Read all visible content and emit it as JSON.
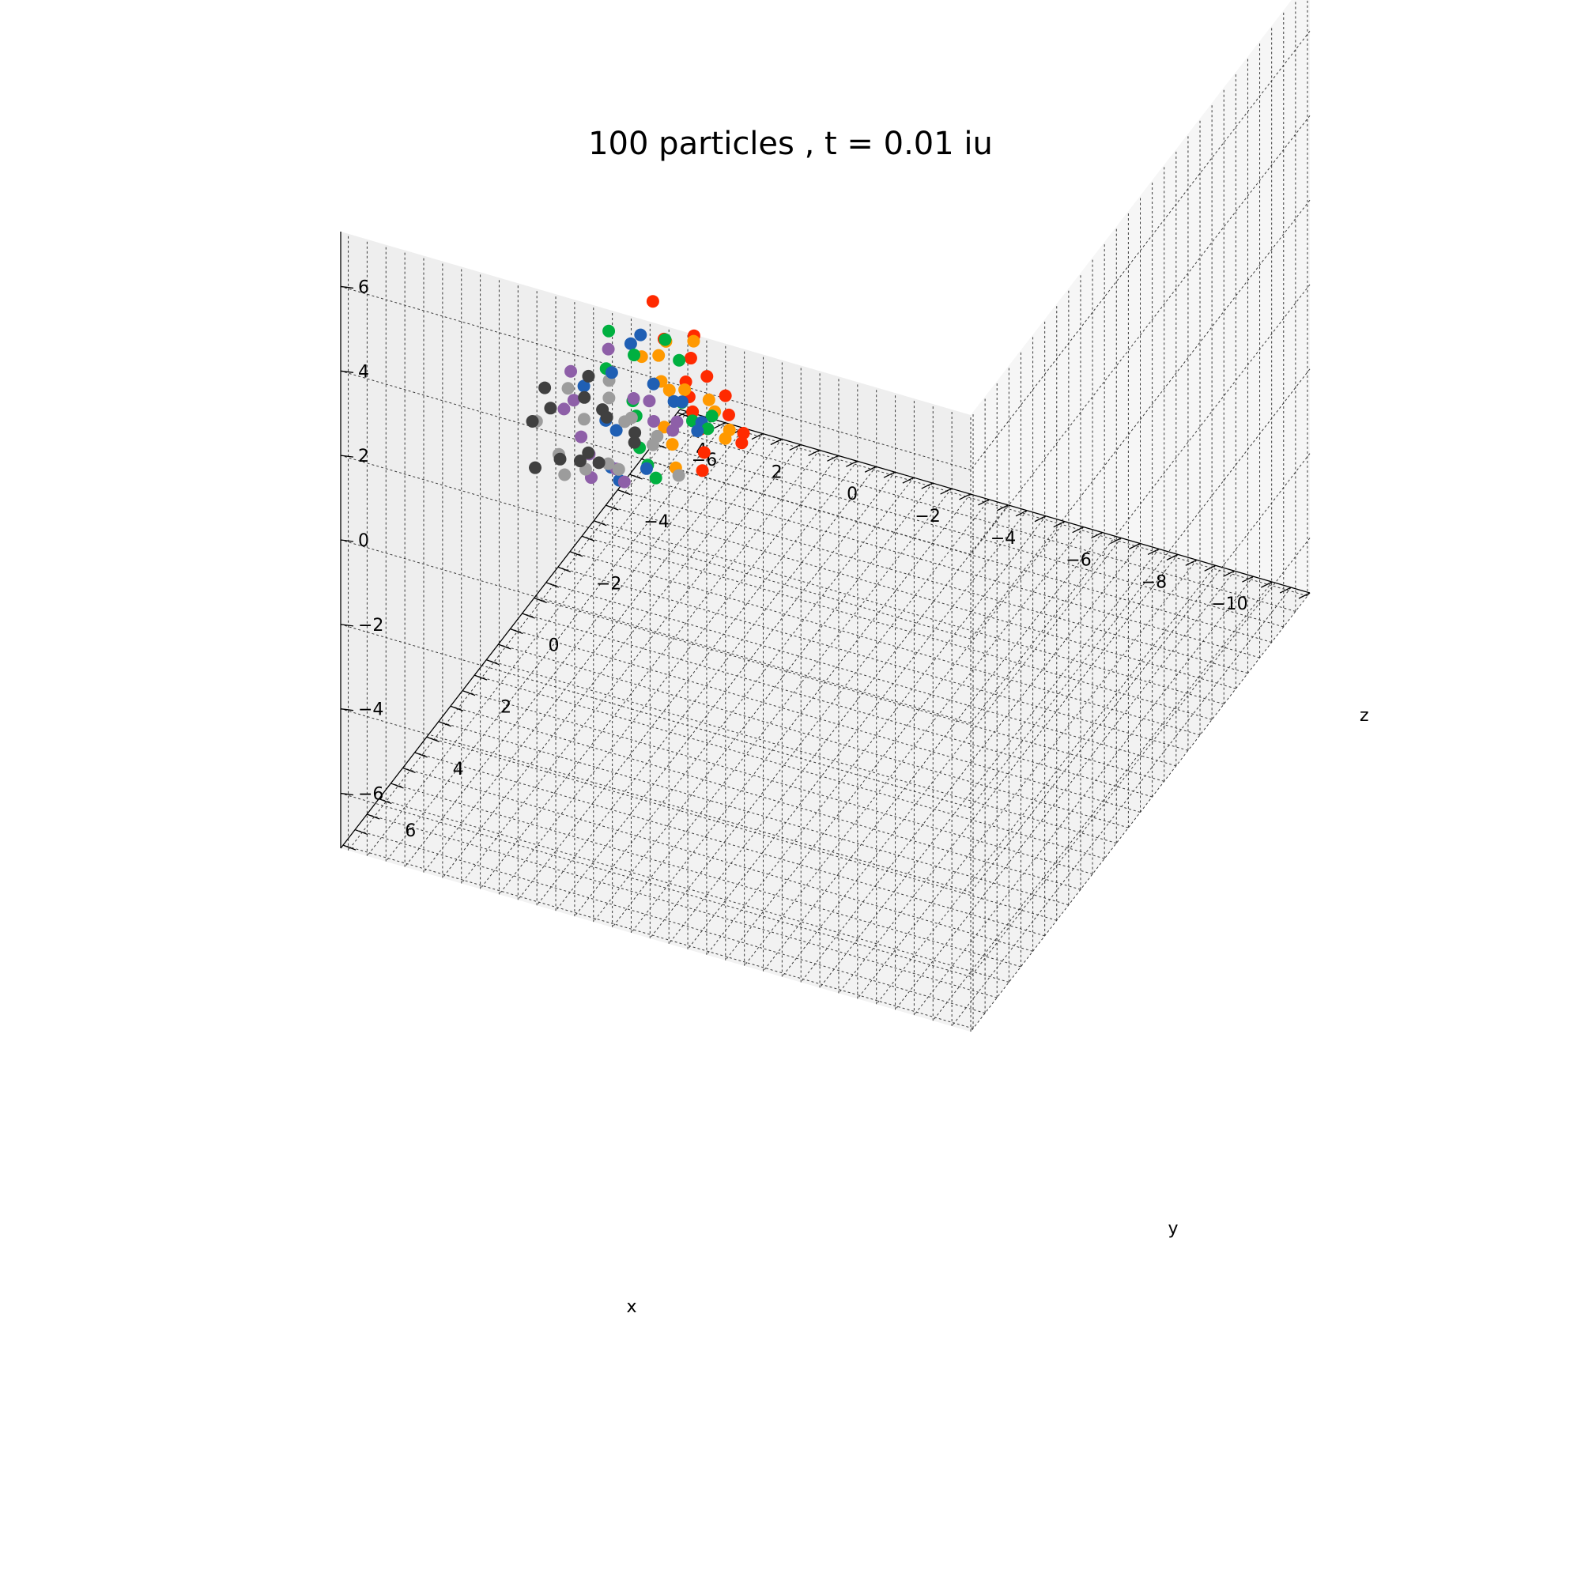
{
  "chart_data": {
    "type": "scatter",
    "title": "100 particles , t = 0.01 iu",
    "xlabel": "x",
    "ylabel": "y",
    "zlabel": "z",
    "xlim": [
      -11.5,
      5.2
    ],
    "ylim": [
      -7.1,
      7.1
    ],
    "zlim": [
      -7.3,
      7.3
    ],
    "xticks": [
      -10,
      -8,
      -6,
      -4,
      -2,
      0,
      2,
      4
    ],
    "yticks": [
      -6,
      -4,
      -2,
      0,
      2,
      4,
      6
    ],
    "zticks": [
      -6,
      -4,
      -2,
      0,
      2,
      4,
      6
    ],
    "xtick_labels": [
      "−10",
      "−8",
      "−6",
      "−4",
      "−2",
      "0",
      "2",
      "4"
    ],
    "ytick_labels": [
      "−6",
      "−4",
      "−2",
      "0",
      "2",
      "4",
      "6"
    ],
    "ztick_labels": [
      "−6",
      "−4",
      "−2",
      "0",
      "2",
      "4",
      "6"
    ],
    "grid": true,
    "legend": "none",
    "colors": {
      "pane_left": "#f6f6f6",
      "pane_back": "#eeeeee",
      "pane_floor": "#f2f2f2",
      "particle_palette": [
        "#ff2a00",
        "#ff9900",
        "#00b040",
        "#1f5fb4",
        "#8e5fa8",
        "#9c9c9c",
        "#404040"
      ]
    },
    "points": [
      {
        "x": 1.8,
        "y": -0.6,
        "z": 0.9,
        "color": "#ff2a00"
      },
      {
        "x": 1.2,
        "y": -0.2,
        "z": 0.4,
        "color": "#ff9900"
      },
      {
        "x": 2.4,
        "y": 0.3,
        "z": 0.7,
        "color": "#00b040"
      },
      {
        "x": 1.5,
        "y": 0.8,
        "z": 1.0,
        "color": "#1f5fb4"
      },
      {
        "x": 2.9,
        "y": 1.1,
        "z": 0.2,
        "color": "#8e5fa8"
      },
      {
        "x": 3.1,
        "y": 0.9,
        "z": -0.4,
        "color": "#9c9c9c"
      },
      {
        "x": 3.4,
        "y": 1.4,
        "z": -0.1,
        "color": "#404040"
      },
      {
        "x": 0.9,
        "y": -0.9,
        "z": 0.1,
        "color": "#ff2a00"
      },
      {
        "x": 1.1,
        "y": -1.2,
        "z": -0.3,
        "color": "#ff9900"
      },
      {
        "x": 1.6,
        "y": -0.8,
        "z": -0.1,
        "color": "#00b040"
      },
      {
        "x": 2.0,
        "y": -0.4,
        "z": 0.2,
        "color": "#1f5fb4"
      },
      {
        "x": 2.6,
        "y": 0.0,
        "z": 0.0,
        "color": "#8e5fa8"
      },
      {
        "x": 2.2,
        "y": 0.6,
        "z": -0.2,
        "color": "#9c9c9c"
      },
      {
        "x": 3.0,
        "y": 0.2,
        "z": -0.6,
        "color": "#404040"
      },
      {
        "x": 1.3,
        "y": -1.4,
        "z": -0.9,
        "color": "#ff2a00"
      },
      {
        "x": 1.9,
        "y": -1.0,
        "z": -0.7,
        "color": "#ff9900"
      },
      {
        "x": 2.3,
        "y": -0.6,
        "z": -0.5,
        "color": "#00b040"
      },
      {
        "x": 2.7,
        "y": -0.3,
        "z": -0.8,
        "color": "#1f5fb4"
      },
      {
        "x": 3.2,
        "y": 0.5,
        "z": -1.0,
        "color": "#8e5fa8"
      },
      {
        "x": 2.8,
        "y": 0.7,
        "z": -1.2,
        "color": "#9c9c9c"
      },
      {
        "x": 3.5,
        "y": 1.0,
        "z": -0.9,
        "color": "#404040"
      },
      {
        "x": 1.0,
        "y": -1.6,
        "z": -1.4,
        "color": "#ff2a00"
      },
      {
        "x": 1.4,
        "y": -1.3,
        "z": -1.6,
        "color": "#ff9900"
      },
      {
        "x": 1.8,
        "y": -1.7,
        "z": -1.3,
        "color": "#00b040"
      },
      {
        "x": 2.1,
        "y": -1.1,
        "z": -1.5,
        "color": "#1f5fb4"
      },
      {
        "x": 2.5,
        "y": -0.9,
        "z": -1.8,
        "color": "#8e5fa8"
      },
      {
        "x": 2.9,
        "y": -0.5,
        "z": -1.6,
        "color": "#9c9c9c"
      },
      {
        "x": 3.3,
        "y": -0.1,
        "z": -1.4,
        "color": "#404040"
      },
      {
        "x": 0.7,
        "y": -1.9,
        "z": -2.0,
        "color": "#ff2a00"
      },
      {
        "x": 1.2,
        "y": -2.0,
        "z": -2.3,
        "color": "#ff9900"
      },
      {
        "x": 1.6,
        "y": -1.5,
        "z": -2.1,
        "color": "#00b040"
      },
      {
        "x": 2.0,
        "y": -1.8,
        "z": -2.4,
        "color": "#1f5fb4"
      },
      {
        "x": 2.4,
        "y": -1.4,
        "z": -2.2,
        "color": "#8e5fa8"
      },
      {
        "x": 2.8,
        "y": -1.0,
        "z": -2.5,
        "color": "#9c9c9c"
      },
      {
        "x": 3.2,
        "y": -0.7,
        "z": -2.1,
        "color": "#404040"
      },
      {
        "x": 0.8,
        "y": -2.2,
        "z": -2.7,
        "color": "#ff2a00"
      },
      {
        "x": 1.3,
        "y": -2.4,
        "z": -2.9,
        "color": "#ff9900"
      },
      {
        "x": 1.7,
        "y": -2.1,
        "z": -3.0,
        "color": "#00b040"
      },
      {
        "x": 2.1,
        "y": -2.3,
        "z": -2.8,
        "color": "#1f5fb4"
      },
      {
        "x": 2.6,
        "y": -1.9,
        "z": -3.1,
        "color": "#8e5fa8"
      },
      {
        "x": 3.0,
        "y": -1.6,
        "z": -2.9,
        "color": "#9c9c9c"
      },
      {
        "x": 3.4,
        "y": -1.2,
        "z": -2.7,
        "color": "#404040"
      },
      {
        "x": 0.6,
        "y": -2.5,
        "z": -3.3,
        "color": "#ff2a00"
      },
      {
        "x": 1.1,
        "y": -2.7,
        "z": -3.5,
        "color": "#ff9900"
      },
      {
        "x": 1.5,
        "y": -2.6,
        "z": -3.2,
        "color": "#00b040"
      },
      {
        "x": 1.9,
        "y": -2.8,
        "z": -3.6,
        "color": "#1f5fb4"
      },
      {
        "x": 2.3,
        "y": -2.4,
        "z": -3.4,
        "color": "#8e5fa8"
      },
      {
        "x": 2.7,
        "y": -2.2,
        "z": -3.7,
        "color": "#9c9c9c"
      },
      {
        "x": 3.1,
        "y": -1.9,
        "z": -3.5,
        "color": "#404040"
      },
      {
        "x": 0.9,
        "y": -2.9,
        "z": -3.9,
        "color": "#ff2a00"
      },
      {
        "x": 1.4,
        "y": -3.0,
        "z": -4.0,
        "color": "#ff9900"
      },
      {
        "x": 1.8,
        "y": -2.9,
        "z": -3.8,
        "color": "#00b040"
      },
      {
        "x": 2.2,
        "y": -3.1,
        "z": -4.1,
        "color": "#1f5fb4"
      },
      {
        "x": 2.6,
        "y": -2.7,
        "z": -3.9,
        "color": "#8e5fa8"
      },
      {
        "x": 3.0,
        "y": -2.5,
        "z": -4.2,
        "color": "#9c9c9c"
      },
      {
        "x": 3.3,
        "y": -2.2,
        "z": -4.0,
        "color": "#404040"
      },
      {
        "x": 1.0,
        "y": 0.2,
        "z": 0.8,
        "color": "#ff2a00"
      },
      {
        "x": 1.4,
        "y": 0.5,
        "z": 0.5,
        "color": "#ff9900"
      },
      {
        "x": 1.9,
        "y": 1.2,
        "z": 0.6,
        "color": "#00b040"
      },
      {
        "x": 2.3,
        "y": 1.5,
        "z": 0.3,
        "color": "#1f5fb4"
      },
      {
        "x": 2.7,
        "y": 1.7,
        "z": -0.2,
        "color": "#8e5fa8"
      },
      {
        "x": 3.3,
        "y": 1.9,
        "z": -0.5,
        "color": "#9c9c9c"
      },
      {
        "x": 3.6,
        "y": 1.6,
        "z": -0.8,
        "color": "#404040"
      },
      {
        "x": 0.8,
        "y": -0.4,
        "z": -0.6,
        "color": "#ff2a00"
      },
      {
        "x": 1.2,
        "y": 0.0,
        "z": -0.4,
        "color": "#ff9900"
      },
      {
        "x": 1.7,
        "y": 0.4,
        "z": -0.7,
        "color": "#00b040"
      },
      {
        "x": 2.1,
        "y": 0.9,
        "z": -0.9,
        "color": "#1f5fb4"
      },
      {
        "x": 2.5,
        "y": 1.3,
        "z": -1.1,
        "color": "#8e5fa8"
      },
      {
        "x": 2.9,
        "y": 1.6,
        "z": -1.4,
        "color": "#9c9c9c"
      },
      {
        "x": 3.4,
        "y": 1.8,
        "z": -1.7,
        "color": "#404040"
      },
      {
        "x": 0.9,
        "y": -0.7,
        "z": -1.2,
        "color": "#ff2a00"
      },
      {
        "x": 1.3,
        "y": -0.5,
        "z": -1.0,
        "color": "#ff9900"
      },
      {
        "x": 1.8,
        "y": 0.1,
        "z": -1.3,
        "color": "#00b040"
      },
      {
        "x": 2.2,
        "y": 0.3,
        "z": -1.6,
        "color": "#1f5fb4"
      },
      {
        "x": 2.6,
        "y": 0.8,
        "z": -1.9,
        "color": "#8e5fa8"
      },
      {
        "x": 3.0,
        "y": 1.2,
        "z": -2.2,
        "color": "#9c9c9c"
      },
      {
        "x": 3.5,
        "y": 0.6,
        "z": -2.4,
        "color": "#404040"
      },
      {
        "x": 1.0,
        "y": -1.0,
        "z": -1.8,
        "color": "#ff2a00"
      },
      {
        "x": 1.5,
        "y": -0.6,
        "z": -2.0,
        "color": "#ff9900"
      },
      {
        "x": 1.9,
        "y": -0.2,
        "z": -2.3,
        "color": "#00b040"
      },
      {
        "x": 2.4,
        "y": 0.2,
        "z": -2.6,
        "color": "#1f5fb4"
      },
      {
        "x": 2.8,
        "y": 0.4,
        "z": -2.8,
        "color": "#8e5fa8"
      },
      {
        "x": 3.2,
        "y": 0.0,
        "z": -3.0,
        "color": "#9c9c9c"
      },
      {
        "x": 3.6,
        "y": -0.4,
        "z": -3.2,
        "color": "#404040"
      },
      {
        "x": 1.1,
        "y": -1.5,
        "z": -2.6,
        "color": "#ff2a00"
      },
      {
        "x": 1.6,
        "y": -1.1,
        "z": -2.8,
        "color": "#ff9900"
      },
      {
        "x": 2.0,
        "y": -0.7,
        "z": -3.1,
        "color": "#00b040"
      },
      {
        "x": 2.5,
        "y": -0.3,
        "z": -3.3,
        "color": "#1f5fb4"
      },
      {
        "x": 2.9,
        "y": -0.8,
        "z": -3.5,
        "color": "#8e5fa8"
      },
      {
        "x": 3.3,
        "y": -1.1,
        "z": -3.7,
        "color": "#9c9c9c"
      },
      {
        "x": 3.7,
        "y": -0.9,
        "z": -3.4,
        "color": "#404040"
      },
      {
        "x": 1.2,
        "y": -1.8,
        "z": -3.4,
        "color": "#ff2a00"
      },
      {
        "x": 1.7,
        "y": -1.4,
        "z": -3.6,
        "color": "#ff9900"
      },
      {
        "x": 2.1,
        "y": -1.2,
        "z": -3.8,
        "color": "#00b040"
      },
      {
        "x": 2.6,
        "y": -1.6,
        "z": -4.0,
        "color": "#1f5fb4"
      },
      {
        "x": 3.0,
        "y": -1.3,
        "z": -4.2,
        "color": "#8e5fa8"
      },
      {
        "x": 3.4,
        "y": -1.7,
        "z": -4.3,
        "color": "#9c9c9c"
      },
      {
        "x": 3.8,
        "y": -1.5,
        "z": -4.1,
        "color": "#404040"
      },
      {
        "x": 1.5,
        "y": -2.2,
        "z": -4.2,
        "color": "#ff2a00"
      },
      {
        "x": 2.0,
        "y": -2.0,
        "z": -4.3,
        "color": "#9c9c9c"
      }
    ]
  }
}
